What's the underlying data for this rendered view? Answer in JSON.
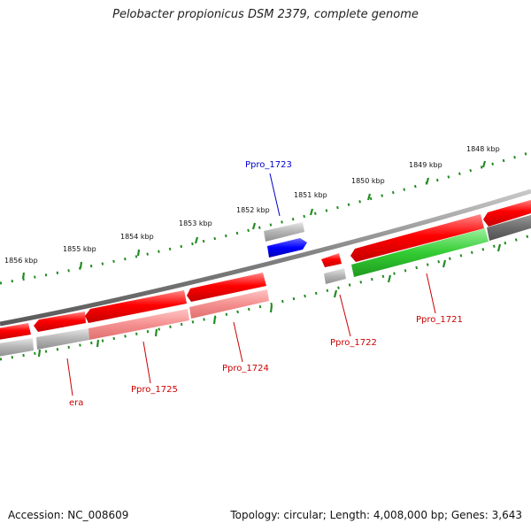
{
  "title": "Pelobacter propionicus DSM 2379, complete genome",
  "footer": {
    "accession": "Accession: NC_008609",
    "summary": "Topology: circular; Length: 4,008,000 bp; Genes: 3,643"
  },
  "colors": {
    "backbone": "#8a8a8a",
    "tick": "#228b22",
    "cds": "#ff0000",
    "cds_light": "#f59090",
    "rna": "#0000ff",
    "green_feature": "#33cc33",
    "gray_feature": "#b4b4b4",
    "dark_gray_feature": "#6e6e6e",
    "label_red": "#cc0000",
    "label_blue": "#0000cc"
  },
  "scale": {
    "unit": "kbp",
    "labels": [
      "1848 kbp",
      "1849 kbp",
      "1850 kbp",
      "1851 kbp",
      "1852 kbp",
      "1853 kbp",
      "1854 kbp",
      "1855 kbp",
      "1856 kbp"
    ]
  },
  "gene_labels": [
    "era",
    "Ppro_1725",
    "Ppro_1724",
    "Ppro_1723",
    "Ppro_1722",
    "Ppro_1721"
  ]
}
